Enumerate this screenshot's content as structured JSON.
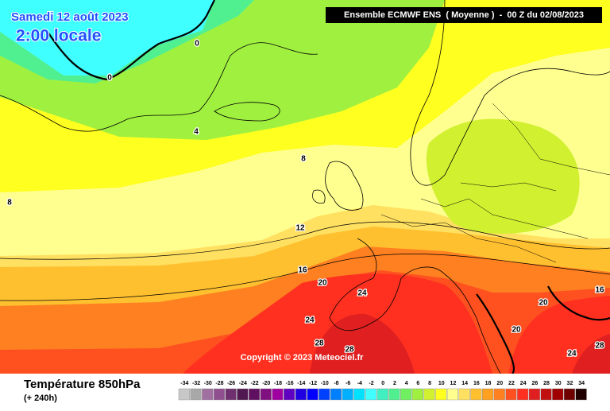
{
  "header": {
    "date": "Samedi 12 août 2023",
    "time": "2:00 locale",
    "model": "Ensemble ECMWF ENS  ( Moyenne )  -  00 Z du 02/08/2023"
  },
  "copyright": "Copyright © 2023 Meteociel.fr",
  "footer": {
    "title": "Température 850hPa",
    "lead": "(+ 240h)"
  },
  "contour_labels": [
    0,
    0,
    4,
    8,
    8,
    12,
    16,
    20,
    24,
    24,
    28,
    28,
    20,
    20,
    24,
    28,
    16
  ],
  "legend": {
    "ticks": [
      -34,
      -32,
      -30,
      -28,
      -26,
      -24,
      -22,
      -20,
      -18,
      -16,
      -14,
      -12,
      -10,
      -8,
      -6,
      -4,
      -2,
      0,
      2,
      4,
      6,
      8,
      10,
      12,
      14,
      16,
      18,
      20,
      22,
      24,
      26,
      28,
      30,
      32,
      34
    ],
    "colors": [
      "#c8c8c8",
      "#a8a8a8",
      "#a070a0",
      "#905090",
      "#703070",
      "#501850",
      "#601060",
      "#801080",
      "#a000a0",
      "#6000c0",
      "#2000e0",
      "#0000ff",
      "#0040ff",
      "#0080ff",
      "#00b0ff",
      "#00e0ff",
      "#40ffff",
      "#40f0c0",
      "#50f090",
      "#70f060",
      "#a0f040",
      "#d0f030",
      "#ffff20",
      "#ffff90",
      "#ffe060",
      "#ffc030",
      "#ffa020",
      "#ff8020",
      "#ff5020",
      "#ff3020",
      "#e02020",
      "#c01010",
      "#a00000",
      "#700000",
      "#200000"
    ]
  }
}
